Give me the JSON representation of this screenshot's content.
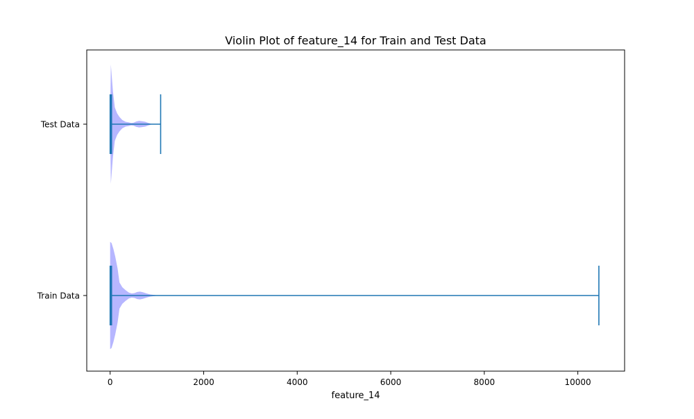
{
  "chart_data": {
    "type": "violin",
    "orientation": "horizontal",
    "title": "Violin Plot of feature_14 for Train and Test Data",
    "xlabel": "feature_14",
    "ylabel": "",
    "xlim": [
      -500,
      11000
    ],
    "xticks": [
      0,
      2000,
      4000,
      6000,
      8000,
      10000
    ],
    "grid": false,
    "violin_color": "#b2b2ff",
    "line_color": "#1f77b4",
    "categories": [
      "Test Data",
      "Train Data"
    ],
    "series": [
      {
        "category": "Test Data",
        "min": 0,
        "max": 1080,
        "median": 20,
        "density": [
          [
            0,
            0.05
          ],
          [
            15,
            1.0
          ],
          [
            30,
            0.85
          ],
          [
            60,
            0.55
          ],
          [
            100,
            0.28
          ],
          [
            150,
            0.18
          ],
          [
            200,
            0.12
          ],
          [
            260,
            0.07
          ],
          [
            330,
            0.04
          ],
          [
            400,
            0.03
          ],
          [
            450,
            0.02
          ],
          [
            500,
            0.025
          ],
          [
            560,
            0.045
          ],
          [
            620,
            0.055
          ],
          [
            680,
            0.05
          ],
          [
            750,
            0.04
          ],
          [
            820,
            0.02
          ],
          [
            880,
            0.006
          ],
          [
            900,
            0.0
          ]
        ]
      },
      {
        "category": "Train Data",
        "min": 0,
        "max": 10450,
        "median": 20,
        "density": [
          [
            0,
            0.9
          ],
          [
            30,
            0.88
          ],
          [
            70,
            0.78
          ],
          [
            110,
            0.65
          ],
          [
            160,
            0.45
          ],
          [
            200,
            0.22
          ],
          [
            260,
            0.14
          ],
          [
            330,
            0.09
          ],
          [
            400,
            0.05
          ],
          [
            460,
            0.035
          ],
          [
            520,
            0.04
          ],
          [
            580,
            0.06
          ],
          [
            640,
            0.065
          ],
          [
            700,
            0.055
          ],
          [
            780,
            0.035
          ],
          [
            860,
            0.018
          ],
          [
            950,
            0.008
          ],
          [
            1050,
            0.0
          ]
        ]
      }
    ]
  }
}
